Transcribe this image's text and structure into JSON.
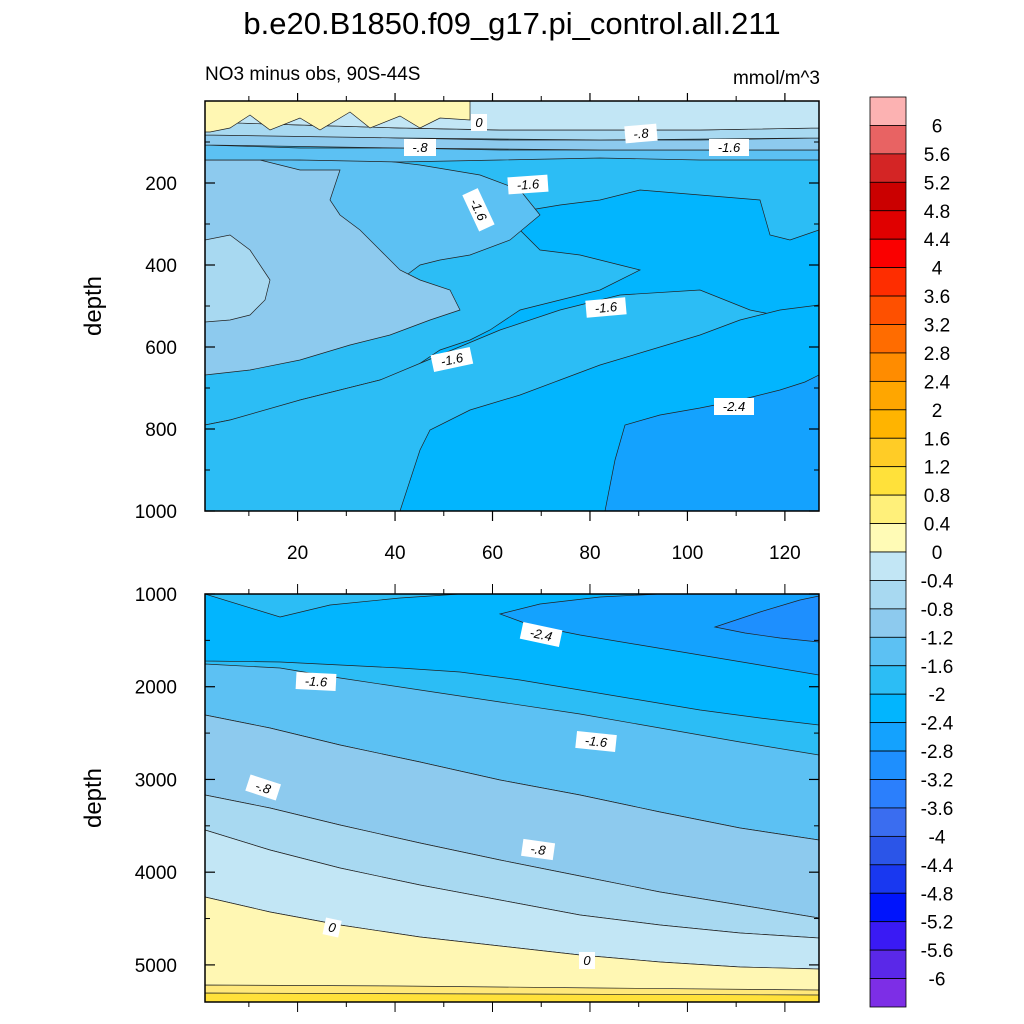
{
  "title": "b.e20.B1850.f09_g17.pi_control.all.211",
  "subtitle_left": "NO3 minus obs, 90S-44S",
  "subtitle_right": "mmol/m^3",
  "chart_data": [
    {
      "type": "contour",
      "panel": "upper",
      "ylabel": "depth",
      "xlabel": "",
      "ylim": [
        1000,
        0
      ],
      "y_ticks": [
        "200",
        "400",
        "600",
        "800",
        "1000"
      ],
      "x_ticks": [
        "20",
        "40",
        "60",
        "80",
        "100",
        "120"
      ],
      "xlim": [
        1,
        127
      ],
      "contour_labels": [
        "0",
        "-.8",
        "-.8",
        "-1.6",
        "-1.6",
        "-1.6",
        "-1.6",
        "-1.6",
        "-2.4"
      ]
    },
    {
      "type": "contour",
      "panel": "lower",
      "ylabel": "depth",
      "xlabel": "",
      "ylim": [
        5400,
        1000
      ],
      "y_ticks": [
        "1000",
        "2000",
        "3000",
        "4000",
        "5000"
      ],
      "contour_labels": [
        "-2.4",
        "-1.6",
        "-1.6",
        "-.8",
        "-.8",
        "0",
        "0"
      ]
    }
  ],
  "colorbar": {
    "labels": [
      "6",
      "5.6",
      "5.2",
      "4.8",
      "4.4",
      "4",
      "3.6",
      "3.2",
      "2.8",
      "2.4",
      "2",
      "1.6",
      "1.2",
      "0.8",
      "0.4",
      "0",
      "-0.4",
      "-0.8",
      "-1.2",
      "-1.6",
      "-2",
      "-2.4",
      "-2.8",
      "-3.2",
      "-3.6",
      "-4",
      "-4.4",
      "-4.8",
      "-5.2",
      "-5.6",
      "-6"
    ],
    "colors": [
      "#fcb2b2",
      "#e86363",
      "#d42525",
      "#cb0000",
      "#e00000",
      "#fa0000",
      "#fe2d00",
      "#fe5000",
      "#ff6c00",
      "#ff8c00",
      "#ffa600",
      "#ffb400",
      "#ffcc26",
      "#ffe13a",
      "#fff07a",
      "#fffbb6",
      "#c2e6f5",
      "#a8d9f1",
      "#8dcaee",
      "#5cc1f3",
      "#2cbdf5",
      "#02b5fe",
      "#14a2fe",
      "#1e8ffe",
      "#2b7ffc",
      "#3a6df0",
      "#2b55e8",
      "#1938f0",
      "#0014fc",
      "#3a1af4",
      "#5a28e8",
      "#7d2ee6"
    ]
  },
  "fill_colors": {
    "l0": "#fff7b3",
    "lm04": "#c2e6f5",
    "lm08": "#a8d9f1",
    "lm12": "#8dcaee",
    "lm16": "#5cc1f3",
    "lm20": "#2cbdf5",
    "lm24": "#02b5fe",
    "lm28": "#14a2fe",
    "lm32": "#1e8ffe",
    "y04": "#ffe87a",
    "y08": "#ffe13a"
  }
}
